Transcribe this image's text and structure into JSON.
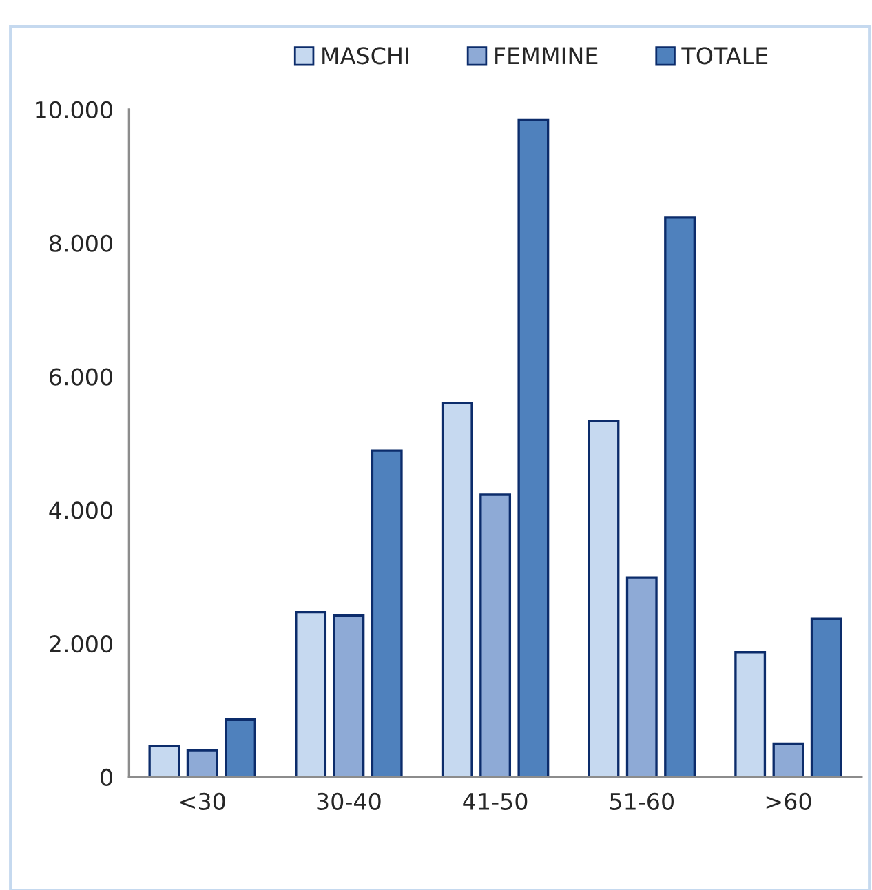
{
  "chart_data": {
    "type": "bar",
    "categories": [
      "<30",
      "30-40",
      "41-50",
      "51-60",
      ">60"
    ],
    "series": [
      {
        "name": "MASCHI",
        "color": "#c6d9f0",
        "values": [
          460,
          2470,
          5600,
          5330,
          1870
        ]
      },
      {
        "name": "FEMMINE",
        "color": "#8eaad6",
        "values": [
          400,
          2420,
          4230,
          2990,
          500
        ]
      },
      {
        "name": "TOTALE",
        "color": "#4f81bd",
        "values": [
          860,
          4890,
          9840,
          8380,
          2370
        ]
      }
    ],
    "ylim": [
      0,
      10000
    ],
    "yticks": [
      0,
      {
        "value": 2000,
        "label": "2.000"
      },
      {
        "value": 4000,
        "label": "4.000"
      },
      {
        "value": 6000,
        "label": "6.000"
      },
      {
        "value": 8000,
        "label": "8.000"
      },
      {
        "value": 10000,
        "label": "10.000"
      }
    ],
    "grid": false,
    "legend": "top"
  }
}
